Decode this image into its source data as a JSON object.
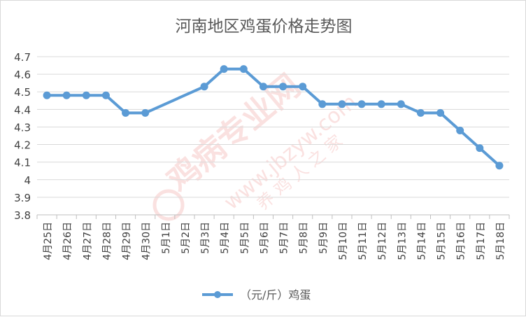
{
  "chart_data": {
    "type": "line",
    "title": "河南地区鸡蛋价格走势图",
    "categories": [
      "4月25日",
      "4月26日",
      "4月27日",
      "4月28日",
      "4月29日",
      "4月30日",
      "5月1日",
      "5月2日",
      "5月3日",
      "5月4日",
      "5月5日",
      "5月6日",
      "5月7日",
      "5月8日",
      "5月9日",
      "5月10日",
      "5月11日",
      "5月12日",
      "5月13日",
      "5月14日",
      "5月15日",
      "5月16日",
      "5月17日",
      "5月18日"
    ],
    "series": [
      {
        "name": "（元/斤）鸡蛋",
        "color": "#5b9bd5",
        "values": [
          4.48,
          4.48,
          4.48,
          4.48,
          4.38,
          4.38,
          null,
          null,
          4.53,
          4.63,
          4.63,
          4.53,
          4.53,
          4.53,
          4.43,
          4.43,
          4.43,
          4.43,
          4.43,
          4.38,
          4.38,
          4.28,
          4.18,
          4.08
        ]
      }
    ],
    "ylim": [
      3.8,
      4.7
    ],
    "yticks": [
      "3.8",
      "3.9",
      "4",
      "4.1",
      "4.2",
      "4.3",
      "4.4",
      "4.5",
      "4.6",
      "4.7"
    ],
    "connect_gaps": true,
    "grid": true,
    "legend_position": "bottom",
    "xlabel": "",
    "ylabel": ""
  },
  "watermark": {
    "name": "鸡病专业网",
    "url": "www.jbzyw.com",
    "sub": "养 鸡 人 之 家",
    "color": "#e3312f"
  }
}
